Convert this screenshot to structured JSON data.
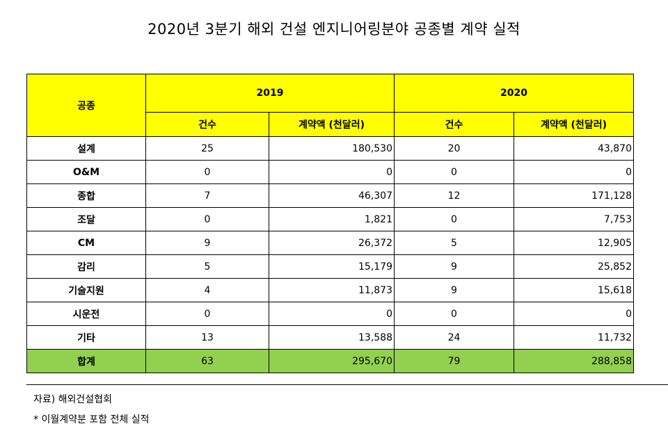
{
  "title": "2020년 3분기 해외 건설 엔지니어링분야 공종별 계약 실적",
  "chart_data": {
    "type": "table",
    "row_header": "공종",
    "years": [
      "2019",
      "2020"
    ],
    "sub_headers": [
      "건수",
      "계약액 (천달러)"
    ],
    "rows": [
      {
        "label": "설계",
        "c2019": "25",
        "a2019": "180,530",
        "c2020": "20",
        "a2020": "43,870"
      },
      {
        "label": "O&M",
        "c2019": "0",
        "a2019": "0",
        "c2020": "0",
        "a2020": "0"
      },
      {
        "label": "종합",
        "c2019": "7",
        "a2019": "46,307",
        "c2020": "12",
        "a2020": "171,128"
      },
      {
        "label": "조달",
        "c2019": "0",
        "a2019": "1,821",
        "c2020": "0",
        "a2020": "7,753"
      },
      {
        "label": "CM",
        "c2019": "9",
        "a2019": "26,372",
        "c2020": "5",
        "a2020": "12,905"
      },
      {
        "label": "감리",
        "c2019": "5",
        "a2019": "15,179",
        "c2020": "9",
        "a2020": "25,852"
      },
      {
        "label": "기술지원",
        "c2019": "4",
        "a2019": "11,873",
        "c2020": "9",
        "a2020": "15,618"
      },
      {
        "label": "시운전",
        "c2019": "0",
        "a2019": "0",
        "c2020": "0",
        "a2020": "0"
      },
      {
        "label": "기타",
        "c2019": "13",
        "a2019": "13,588",
        "c2020": "24",
        "a2020": "11,732"
      }
    ],
    "total": {
      "label": "합계",
      "c2019": "63",
      "a2019": "295,670",
      "c2020": "79",
      "a2020": "288,858"
    },
    "header_color": "#ffff00",
    "total_color": "#92d050"
  },
  "notes": {
    "source": "자료) 해외건설협회",
    "footnote": "* 이월계약분 포함 전체 실적"
  }
}
